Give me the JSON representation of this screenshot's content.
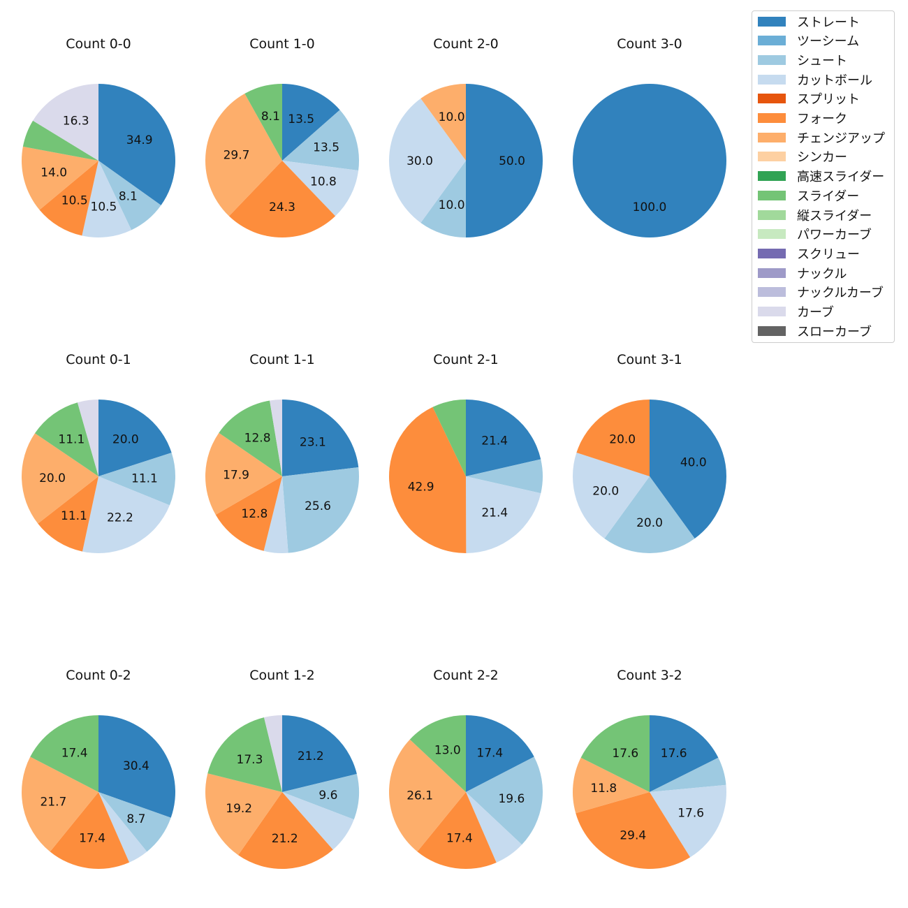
{
  "chart_data": {
    "type": "pie",
    "legend": {
      "placement": "right",
      "entries": [
        {
          "name": "ストレート",
          "color": "#3182bd"
        },
        {
          "name": "ツーシーム",
          "color": "#6baed6"
        },
        {
          "name": "シュート",
          "color": "#9ecae1"
        },
        {
          "name": "カットボール",
          "color": "#c6dbef"
        },
        {
          "name": "スプリット",
          "color": "#e6550d"
        },
        {
          "name": "フォーク",
          "color": "#fd8d3c"
        },
        {
          "name": "チェンジアップ",
          "color": "#fdae6b"
        },
        {
          "name": "シンカー",
          "color": "#fdd0a2"
        },
        {
          "name": "高速スライダー",
          "color": "#31a354"
        },
        {
          "name": "スライダー",
          "color": "#74c476"
        },
        {
          "name": "縦スライダー",
          "color": "#a1d99b"
        },
        {
          "name": "パワーカーブ",
          "color": "#c7e9c0"
        },
        {
          "name": "スクリュー",
          "color": "#756bb1"
        },
        {
          "name": "ナックル",
          "color": "#9e9ac8"
        },
        {
          "name": "ナックルカーブ",
          "color": "#bcbddc"
        },
        {
          "name": "カーブ",
          "color": "#dadaeb"
        },
        {
          "name": "スローカーブ",
          "color": "#636363"
        }
      ]
    },
    "panels": [
      {
        "title": "Count 0-0",
        "slices": [
          {
            "pitch": "ストレート",
            "value": 34.9,
            "label": "34.9"
          },
          {
            "pitch": "シュート",
            "value": 8.1,
            "label": "8.1"
          },
          {
            "pitch": "カットボール",
            "value": 10.5,
            "label": "10.5"
          },
          {
            "pitch": "フォーク",
            "value": 10.5,
            "label": "10.5"
          },
          {
            "pitch": "チェンジアップ",
            "value": 14.0,
            "label": "14.0"
          },
          {
            "pitch": "スライダー",
            "value": 5.8,
            "label": ""
          },
          {
            "pitch": "カーブ",
            "value": 16.3,
            "label": "16.3"
          }
        ]
      },
      {
        "title": "Count 1-0",
        "slices": [
          {
            "pitch": "ストレート",
            "value": 13.5,
            "label": "13.5"
          },
          {
            "pitch": "シュート",
            "value": 13.5,
            "label": "13.5"
          },
          {
            "pitch": "カットボール",
            "value": 10.8,
            "label": "10.8"
          },
          {
            "pitch": "フォーク",
            "value": 24.3,
            "label": "24.3"
          },
          {
            "pitch": "チェンジアップ",
            "value": 29.7,
            "label": "29.7"
          },
          {
            "pitch": "スライダー",
            "value": 8.1,
            "label": "8.1"
          }
        ]
      },
      {
        "title": "Count 2-0",
        "slices": [
          {
            "pitch": "ストレート",
            "value": 50.0,
            "label": "50.0"
          },
          {
            "pitch": "シュート",
            "value": 10.0,
            "label": "10.0"
          },
          {
            "pitch": "カットボール",
            "value": 30.0,
            "label": "30.0"
          },
          {
            "pitch": "チェンジアップ",
            "value": 10.0,
            "label": "10.0"
          }
        ]
      },
      {
        "title": "Count 3-0",
        "slices": [
          {
            "pitch": "ストレート",
            "value": 100.0,
            "label": "100.0"
          }
        ]
      },
      {
        "title": "Count 0-1",
        "slices": [
          {
            "pitch": "ストレート",
            "value": 20.0,
            "label": "20.0"
          },
          {
            "pitch": "シュート",
            "value": 11.1,
            "label": "11.1"
          },
          {
            "pitch": "カットボール",
            "value": 22.2,
            "label": "22.2"
          },
          {
            "pitch": "フォーク",
            "value": 11.1,
            "label": "11.1"
          },
          {
            "pitch": "チェンジアップ",
            "value": 20.0,
            "label": "20.0"
          },
          {
            "pitch": "スライダー",
            "value": 11.1,
            "label": "11.1"
          },
          {
            "pitch": "カーブ",
            "value": 4.4,
            "label": ""
          }
        ]
      },
      {
        "title": "Count 1-1",
        "slices": [
          {
            "pitch": "ストレート",
            "value": 23.1,
            "label": "23.1"
          },
          {
            "pitch": "シュート",
            "value": 25.6,
            "label": "25.6"
          },
          {
            "pitch": "カットボール",
            "value": 5.1,
            "label": ""
          },
          {
            "pitch": "フォーク",
            "value": 12.8,
            "label": "12.8"
          },
          {
            "pitch": "チェンジアップ",
            "value": 17.9,
            "label": "17.9"
          },
          {
            "pitch": "スライダー",
            "value": 12.8,
            "label": "12.8"
          },
          {
            "pitch": "カーブ",
            "value": 2.6,
            "label": ""
          }
        ]
      },
      {
        "title": "Count 2-1",
        "slices": [
          {
            "pitch": "ストレート",
            "value": 21.4,
            "label": "21.4"
          },
          {
            "pitch": "シュート",
            "value": 7.1,
            "label": ""
          },
          {
            "pitch": "カットボール",
            "value": 21.4,
            "label": "21.4"
          },
          {
            "pitch": "フォーク",
            "value": 42.9,
            "label": "42.9"
          },
          {
            "pitch": "スライダー",
            "value": 7.1,
            "label": ""
          }
        ]
      },
      {
        "title": "Count 3-1",
        "slices": [
          {
            "pitch": "ストレート",
            "value": 40.0,
            "label": "40.0"
          },
          {
            "pitch": "シュート",
            "value": 20.0,
            "label": "20.0"
          },
          {
            "pitch": "カットボール",
            "value": 20.0,
            "label": "20.0"
          },
          {
            "pitch": "フォーク",
            "value": 20.0,
            "label": "20.0"
          }
        ]
      },
      {
        "title": "Count 0-2",
        "slices": [
          {
            "pitch": "ストレート",
            "value": 30.4,
            "label": "30.4"
          },
          {
            "pitch": "シュート",
            "value": 8.7,
            "label": "8.7"
          },
          {
            "pitch": "カットボール",
            "value": 4.3,
            "label": ""
          },
          {
            "pitch": "フォーク",
            "value": 17.4,
            "label": "17.4"
          },
          {
            "pitch": "チェンジアップ",
            "value": 21.7,
            "label": "21.7"
          },
          {
            "pitch": "スライダー",
            "value": 17.4,
            "label": "17.4"
          }
        ]
      },
      {
        "title": "Count 1-2",
        "slices": [
          {
            "pitch": "ストレート",
            "value": 21.2,
            "label": "21.2"
          },
          {
            "pitch": "シュート",
            "value": 9.6,
            "label": "9.6"
          },
          {
            "pitch": "カットボール",
            "value": 7.7,
            "label": ""
          },
          {
            "pitch": "フォーク",
            "value": 21.2,
            "label": "21.2"
          },
          {
            "pitch": "チェンジアップ",
            "value": 19.2,
            "label": "19.2"
          },
          {
            "pitch": "スライダー",
            "value": 17.3,
            "label": "17.3"
          },
          {
            "pitch": "カーブ",
            "value": 3.8,
            "label": ""
          }
        ]
      },
      {
        "title": "Count 2-2",
        "slices": [
          {
            "pitch": "ストレート",
            "value": 17.4,
            "label": "17.4"
          },
          {
            "pitch": "シュート",
            "value": 19.6,
            "label": "19.6"
          },
          {
            "pitch": "カットボール",
            "value": 6.5,
            "label": ""
          },
          {
            "pitch": "フォーク",
            "value": 17.4,
            "label": "17.4"
          },
          {
            "pitch": "チェンジアップ",
            "value": 26.1,
            "label": "26.1"
          },
          {
            "pitch": "スライダー",
            "value": 13.0,
            "label": "13.0"
          }
        ]
      },
      {
        "title": "Count 3-2",
        "slices": [
          {
            "pitch": "ストレート",
            "value": 17.6,
            "label": "17.6"
          },
          {
            "pitch": "シュート",
            "value": 5.9,
            "label": ""
          },
          {
            "pitch": "カットボール",
            "value": 17.6,
            "label": "17.6"
          },
          {
            "pitch": "フォーク",
            "value": 29.4,
            "label": "29.4"
          },
          {
            "pitch": "チェンジアップ",
            "value": 11.8,
            "label": "11.8"
          },
          {
            "pitch": "スライダー",
            "value": 17.6,
            "label": "17.6"
          }
        ]
      }
    ]
  }
}
